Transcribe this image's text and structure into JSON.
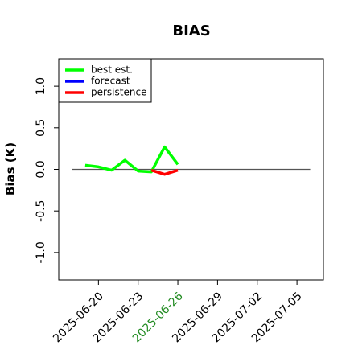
{
  "chart_data": {
    "type": "line",
    "title": "BIAS",
    "y_label": "Bias (K)",
    "x": [
      "2025-06-19",
      "2025-06-20",
      "2025-06-21",
      "2025-06-22",
      "2025-06-23",
      "2025-06-24",
      "2025-06-25",
      "2025-06-26"
    ],
    "series": [
      {
        "name": "best est.",
        "color": "#00ff00",
        "values": [
          0.05,
          0.03,
          -0.01,
          0.11,
          -0.02,
          -0.03,
          0.27,
          0.06
        ]
      },
      {
        "name": "forecast",
        "color": "#0000ff",
        "values": [
          null,
          null,
          null,
          null,
          null,
          null,
          null,
          null
        ]
      },
      {
        "name": "persistence",
        "color": "#ff0000",
        "values": [
          null,
          null,
          null,
          null,
          null,
          -0.01,
          -0.06,
          -0.01
        ]
      }
    ],
    "xlim": [
      "2025-06-17",
      "2025-07-07"
    ],
    "xticks": [
      "2025-06-20",
      "2025-06-23",
      "2025-06-26",
      "2025-06-29",
      "2025-07-02",
      "2025-07-05"
    ],
    "highlight": {
      "tick": "2025-06-26",
      "color": "#228b22"
    },
    "ylim": [
      -1.33,
      1.33
    ],
    "yticks": [
      {
        "value": -1,
        "label": "-1.0"
      },
      {
        "value": -0.5,
        "label": "-0.5"
      },
      {
        "value": 0,
        "label": "0.0"
      },
      {
        "value": 0.5,
        "label": "0.5"
      },
      {
        "value": 1,
        "label": "1.0"
      }
    ],
    "reference_line": {
      "y": 0,
      "x": [
        "2025-06-18",
        "2025-07-06"
      ],
      "color": "#555555"
    },
    "legend": "top-left"
  }
}
